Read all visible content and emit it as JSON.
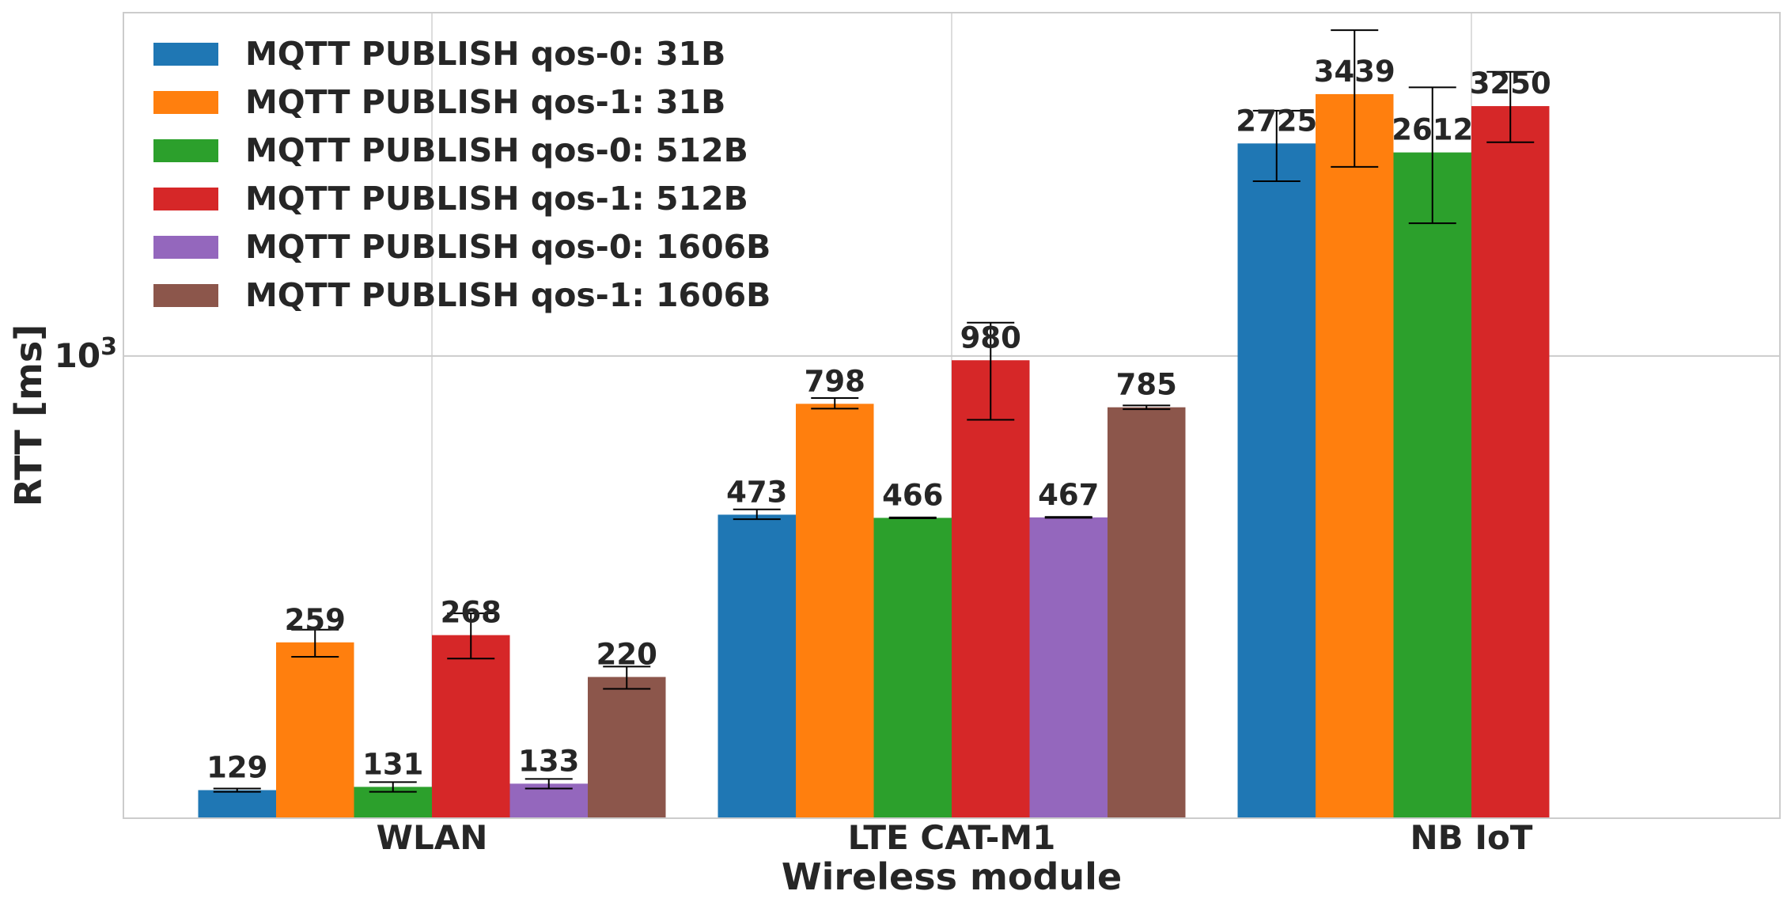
{
  "chart_data": {
    "type": "bar",
    "categories": [
      "WLAN",
      "LTE CAT-M1",
      "NB IoT"
    ],
    "xlabel": "Wireless module",
    "ylabel": "RTT [ms]",
    "yscale": "log",
    "ylim": [
      113,
      5050
    ],
    "yticks": [
      {
        "value": 1000,
        "base": "10",
        "exp": "3"
      }
    ],
    "grid": true,
    "legend_position": "top-left",
    "series": [
      {
        "name": "MQTT PUBLISH qos-0: 31B",
        "color": "#1f77b4",
        "values": [
          129,
          473,
          2725
        ],
        "err_low": [
          128,
          463,
          2280
        ],
        "err_high": [
          130,
          485,
          3180
        ]
      },
      {
        "name": "MQTT PUBLISH qos-1: 31B",
        "color": "#ff7f0e",
        "values": [
          259,
          798,
          3439
        ],
        "err_low": [
          242,
          780,
          2440
        ],
        "err_high": [
          275,
          820,
          4650
        ]
      },
      {
        "name": "MQTT PUBLISH qos-0: 512B",
        "color": "#2ca02c",
        "values": [
          131,
          466,
          2612
        ],
        "err_low": [
          128,
          465,
          1870
        ],
        "err_high": [
          134,
          467,
          3550
        ]
      },
      {
        "name": "MQTT PUBLISH qos-1: 512B",
        "color": "#d62728",
        "values": [
          268,
          980,
          3250
        ],
        "err_low": [
          240,
          740,
          2740
        ],
        "err_high": [
          297,
          1170,
          3820
        ]
      },
      {
        "name": "MQTT PUBLISH qos-0: 1606B",
        "color": "#9467bd",
        "values": [
          133,
          467,
          null
        ],
        "err_low": [
          130,
          466,
          null
        ],
        "err_high": [
          136,
          468,
          null
        ]
      },
      {
        "name": "MQTT PUBLISH qos-1: 1606B",
        "color": "#8c564b",
        "values": [
          220,
          785,
          null
        ],
        "err_low": [
          208,
          778,
          null
        ],
        "err_high": [
          231,
          792,
          null
        ]
      }
    ]
  }
}
